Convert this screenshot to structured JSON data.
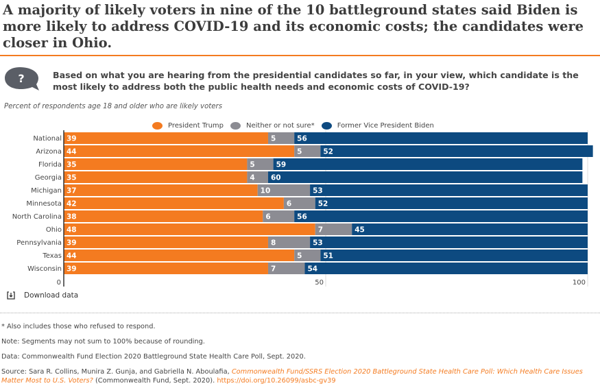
{
  "title": "A majority of likely voters in nine of the 10 battleground states said Biden is more likely to address COVID-19 and its economic costs; the candidates were closer in Ohio.",
  "question": "Based on what you are hearing from the presidential candidates so far, in your view, which candidate is the most likely to address both the public health needs and economic costs of COVID-19?",
  "question_icon": "question-bubble-icon",
  "download_label": "Download data",
  "footnotes": {
    "asterisk": "* Also includes those who refused to respond.",
    "note": "Note: Segments may not sum to 100% because of rounding.",
    "data": "Data: Commonwealth Fund Election 2020 Battleground State Health Care Poll, Sept. 2020.",
    "source_prefix": "Source: Sara R. Collins, Munira Z. Gunja, and Gabriella N. Aboulafia, ",
    "source_title": "Commonwealth Fund/SSRS Election 2020 Battleground State Health Care Poll: Which Health Care Issues Matter Most to U.S. Voters?",
    "source_mid": " (Commonwealth Fund, Sept. 2020). ",
    "source_link": "https://doi.org/10.26099/asbc-gv39"
  },
  "chart_data": {
    "type": "bar",
    "orientation": "horizontal",
    "stacked": true,
    "subtitle": "Percent of respondents age 18 and older who are likely voters",
    "categories": [
      "National",
      "Arizona",
      "Florida",
      "Georgia",
      "Michigan",
      "Minnesota",
      "North Carolina",
      "Ohio",
      "Pennsylvania",
      "Texas",
      "Wisconsin"
    ],
    "series": [
      {
        "name": "President Trump",
        "color": "#f47b20",
        "values": [
          39,
          44,
          35,
          35,
          37,
          42,
          38,
          48,
          39,
          44,
          39
        ]
      },
      {
        "name": "Neither or not sure*",
        "color": "#8c8c93",
        "values": [
          5,
          5,
          5,
          4,
          10,
          6,
          6,
          7,
          8,
          5,
          7
        ]
      },
      {
        "name": "Former Vice President Biden",
        "color": "#0d4a80",
        "values": [
          56,
          52,
          59,
          60,
          53,
          52,
          56,
          45,
          53,
          51,
          54
        ]
      }
    ],
    "xlim": [
      0,
      100
    ],
    "xticks": [
      "0",
      "50",
      "100"
    ],
    "legend_position": "top"
  }
}
